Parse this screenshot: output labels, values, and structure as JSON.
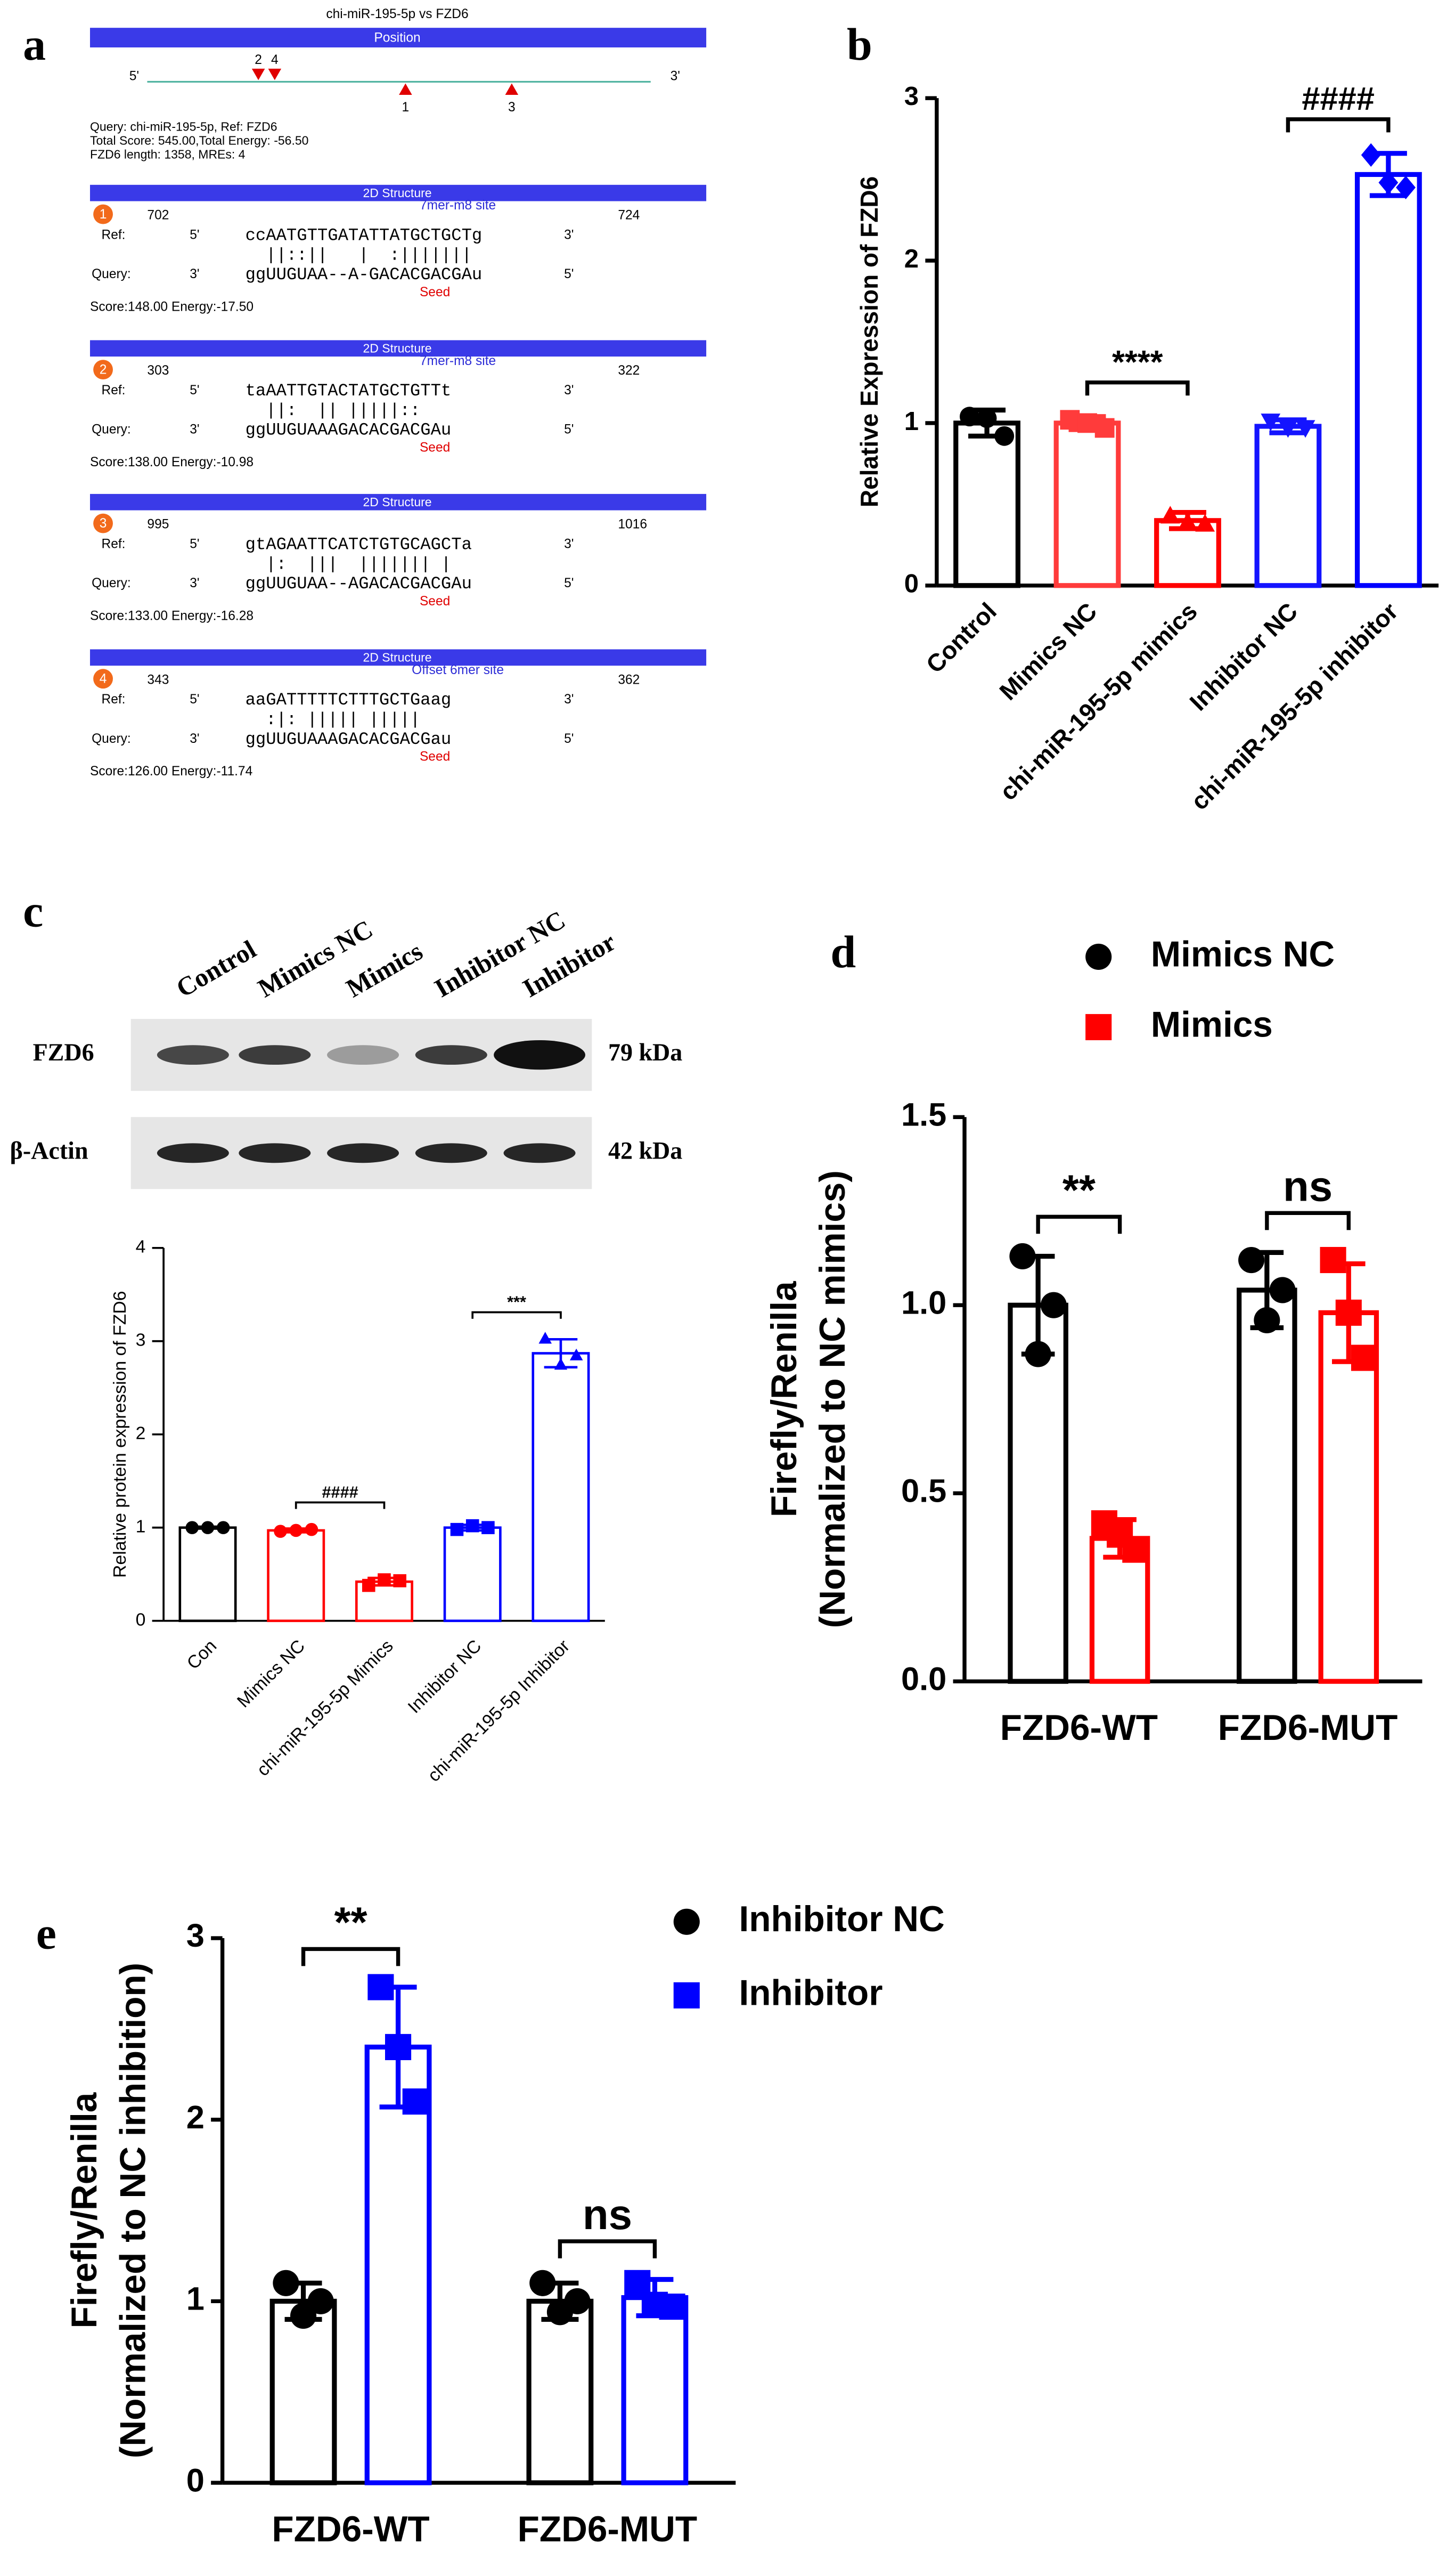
{
  "panel_letters": [
    "a",
    "b",
    "c",
    "d",
    "e"
  ],
  "panel_a": {
    "title": "chi-miR-195-5p vs FZD6",
    "position_header": "Position",
    "structure_header": "2D Structure",
    "five": "5'",
    "three": "3'",
    "ref_label": "Ref:",
    "query_label": "Query:",
    "seed": "Seed",
    "site_marks": [
      "2",
      "4",
      "1",
      "3"
    ],
    "info": [
      "Query: chi-miR-195-5p, Ref: FZD6",
      "Total Score: 545.00,Total Energy: -56.50",
      "FZD6 length: 1358, MREs: 4"
    ],
    "structures": [
      {
        "number": "1",
        "start": "702",
        "site": "7mer-m8 site",
        "end": "724",
        "ref_seq": "ccAATGTTGATATTATGCTGCTg",
        "pairs": "  ||::||   |  :|||||||",
        "query_seq": "ggUUGUAA--A-GACACGACGAu",
        "score": "Score:148.00 Energy:-17.50"
      },
      {
        "number": "2",
        "start": "303",
        "site": "7mer-m8 site",
        "end": "322",
        "ref_seq": "taAATTGTACTATGCTGTTt",
        "pairs": "  ||:  || |||||::",
        "query_seq": "ggUUGUAAAGACACGACGAu",
        "score": "Score:138.00 Energy:-10.98"
      },
      {
        "number": "3",
        "start": "995",
        "site": "",
        "end": "1016",
        "ref_seq": "gtAGAATTCATCTGTGCAGCTa",
        "pairs": "  |:  |||  ||||||| |",
        "query_seq": "ggUUGUAA--AGACACGACGAu",
        "score": "Score:133.00 Energy:-16.28"
      },
      {
        "number": "4",
        "start": "343",
        "site": "Offset 6mer site",
        "end": "362",
        "ref_seq": "aaGATTTTTCTTTGCTGaag",
        "pairs": "  :|: ||||| |||||",
        "query_seq": "ggUUGUAAAGACACGACGau",
        "score": "Score:126.00 Energy:-11.74"
      }
    ]
  },
  "blot": {
    "lanes": [
      "Control",
      "Mimics NC",
      "Mimics",
      "Inhibitor NC",
      "Inhibitor"
    ],
    "proteins": [
      {
        "name": "FZD6",
        "size": "79 kDa"
      },
      {
        "name": "β-Actin",
        "size": "42 kDa"
      }
    ]
  },
  "chart_data": [
    {
      "type": "bar",
      "ylabel": [
        "Relative Expression of FZD6"
      ],
      "categories": [
        "Control",
        "Mimics NC",
        "chi-miR-195-5p mimics",
        "Inhibitor NC",
        "chi-miR-195-5p inhibitor"
      ],
      "values": [
        1.0,
        1.0,
        0.4,
        0.98,
        2.53
      ],
      "errors": [
        0.08,
        0.04,
        0.05,
        0.04,
        0.13
      ],
      "points": [
        [
          1.04,
          1.03,
          0.92
        ],
        [
          1.02,
          1.0,
          0.97
        ],
        [
          0.43,
          0.39,
          0.38
        ],
        [
          1.01,
          0.97,
          0.97
        ],
        [
          2.65,
          2.48,
          2.45
        ]
      ],
      "colors": [
        "#000000",
        "#ff3b3b",
        "#ff0000",
        "#1414ff",
        "#0000ff"
      ],
      "markers": [
        "circle",
        "square",
        "triangle",
        "triangle-down",
        "diamond"
      ],
      "ylim": [
        0,
        3
      ],
      "yticks": [
        0,
        1,
        2,
        3
      ],
      "annotations": [
        {
          "text": "****",
          "from": 1,
          "to": 2
        },
        {
          "text": "####",
          "from": 3,
          "to": 4
        }
      ]
    },
    {
      "type": "bar",
      "ylabel": [
        "Relative protein expression of FZD6"
      ],
      "categories": [
        "Con",
        "Mimics NC",
        "chi-miR-195-5p Mimics",
        "Inhibitor NC",
        "chi-miR-195-5p Inhibitor"
      ],
      "values": [
        1.0,
        0.97,
        0.42,
        1.0,
        2.87
      ],
      "errors": [
        0.01,
        0.02,
        0.04,
        0.03,
        0.15
      ],
      "points": [
        [
          1.0,
          1.0,
          1.0
        ],
        [
          0.96,
          0.97,
          0.98
        ],
        [
          0.38,
          0.44,
          0.43
        ],
        [
          0.98,
          1.02,
          1.0
        ],
        [
          3.03,
          2.75,
          2.85
        ]
      ],
      "colors": [
        "#000000",
        "#ff0000",
        "#ff0000",
        "#0000ff",
        "#0000ff"
      ],
      "markers": [
        "circle",
        "circle",
        "square",
        "square",
        "triangle"
      ],
      "ylim": [
        0,
        4
      ],
      "yticks": [
        0,
        1,
        2,
        3,
        4
      ],
      "annotations": [
        {
          "text": "####",
          "from": 1,
          "to": 2
        },
        {
          "text": "***",
          "from": 3,
          "to": 4
        }
      ]
    },
    {
      "type": "bar",
      "ylabel": [
        "Firefly/Renilla",
        "(Normalized to NC mimics)"
      ],
      "categories": [
        "FZD6-WT",
        "FZD6-MUT"
      ],
      "series": [
        {
          "name": "Mimics NC",
          "color": "#000000",
          "marker": "circle",
          "values": [
            1.0,
            1.04
          ],
          "errors": [
            0.13,
            0.1
          ],
          "points": [
            [
              1.13,
              0.87,
              1.0
            ],
            [
              1.12,
              0.96,
              1.04
            ]
          ]
        },
        {
          "name": "Mimics",
          "color": "#ff0000",
          "marker": "square",
          "values": [
            0.38,
            0.98
          ],
          "errors": [
            0.05,
            0.13
          ],
          "points": [
            [
              0.42,
              0.39,
              0.35
            ],
            [
              1.12,
              0.98,
              0.86
            ]
          ]
        }
      ],
      "ylim": [
        0,
        1.5
      ],
      "yticks": [
        {
          "value": 0,
          "label": "0.0"
        },
        {
          "value": 0.5,
          "label": "0.5"
        },
        {
          "value": 1,
          "label": "1.0"
        },
        {
          "value": 1.5,
          "label": "1.5"
        }
      ],
      "annotations": [
        {
          "text": "**",
          "group": 0
        },
        {
          "text": "ns",
          "group": 1
        }
      ]
    },
    {
      "type": "bar",
      "ylabel": [
        "Firefly/Renilla",
        "(Normalized to NC inhibition)"
      ],
      "categories": [
        "FZD6-WT",
        "FZD6-MUT"
      ],
      "series": [
        {
          "name": "Inhibitor NC",
          "color": "#000000",
          "marker": "circle",
          "values": [
            1.0,
            1.0
          ],
          "errors": [
            0.1,
            0.1
          ],
          "points": [
            [
              1.1,
              0.92,
              1.0
            ],
            [
              1.1,
              0.94,
              1.0
            ]
          ]
        },
        {
          "name": "Inhibitor",
          "color": "#0000ff",
          "marker": "square",
          "values": [
            2.4,
            1.02
          ],
          "errors": [
            0.33,
            0.1
          ],
          "points": [
            [
              2.73,
              2.4,
              2.1
            ],
            [
              1.1,
              0.98,
              0.97
            ]
          ]
        }
      ],
      "ylim": [
        0,
        3
      ],
      "yticks": [
        0,
        1,
        2,
        3
      ],
      "annotations": [
        {
          "text": "**",
          "group": 0
        },
        {
          "text": "ns",
          "group": 1
        }
      ]
    }
  ]
}
